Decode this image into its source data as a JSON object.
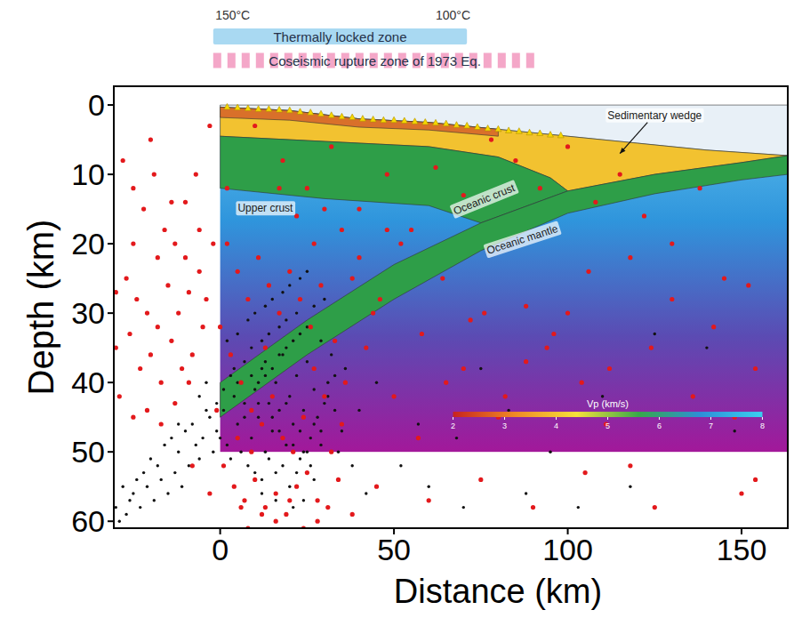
{
  "chart_data": {
    "type": "scatter",
    "xlabel": "Distance (km)",
    "ylabel": "Depth (km)",
    "xlim": [
      -30.6,
      163.3
    ],
    "ylim": [
      61,
      -2.7
    ],
    "xticks": [
      0,
      50,
      100,
      150
    ],
    "yticks": [
      0,
      10,
      20,
      30,
      40,
      50,
      60
    ],
    "series": [
      {
        "color": "#e3191c",
        "marker": "circle",
        "x": [
          -28,
          -25,
          -22,
          -19,
          -16,
          -13,
          -10,
          -27,
          -24,
          -21,
          -18,
          -15,
          -12,
          -9,
          -6,
          -30,
          -26,
          -23,
          -20,
          -17,
          -14,
          -11,
          -8,
          -5,
          -29,
          -25,
          -21,
          -17,
          -13,
          -9,
          -3,
          -7,
          -2,
          -20,
          -25,
          -30,
          -18,
          -14,
          -10,
          -6,
          2,
          5,
          8,
          11,
          14,
          17,
          20,
          23,
          26,
          29,
          3,
          6,
          9,
          12,
          15,
          18,
          21,
          24,
          27,
          30,
          1,
          4,
          7,
          10,
          13,
          16,
          19,
          22,
          25,
          28,
          32,
          35,
          34,
          31,
          28,
          24,
          20,
          16,
          12,
          8,
          10,
          18,
          25,
          32,
          40,
          48,
          55,
          62,
          70,
          78,
          85,
          92,
          100,
          108,
          115,
          122,
          130,
          138,
          145,
          152,
          40,
          46,
          52,
          58,
          64,
          70,
          76,
          82,
          88,
          94,
          100,
          106,
          112,
          118,
          124,
          130,
          136,
          142,
          148,
          154,
          42,
          50,
          57,
          65,
          72,
          80,
          88,
          96,
          104,
          111,
          45,
          60,
          75,
          90,
          105,
          118,
          125,
          150,
          154,
          38,
          35,
          38,
          44,
          30,
          27,
          33,
          22,
          17,
          36,
          48,
          -4,
          0,
          2,
          -1,
          5,
          9,
          13,
          -8,
          -3,
          6
        ],
        "values": [
          8,
          12,
          15,
          10,
          18,
          20,
          14,
          25,
          28,
          30,
          22,
          26,
          30,
          27,
          24,
          35,
          33,
          38,
          36,
          40,
          34,
          38,
          36,
          32,
          42,
          45,
          44,
          46,
          43,
          40,
          3,
          10,
          20,
          5,
          20,
          27,
          32,
          14,
          22,
          18,
          20,
          24,
          28,
          22,
          26,
          30,
          24,
          28,
          32,
          26,
          36,
          40,
          44,
          46,
          42,
          48,
          50,
          45,
          38,
          42,
          52,
          55,
          57,
          54,
          58,
          56,
          59,
          55,
          53,
          57,
          50,
          46,
          54,
          58,
          60,
          61,
          57,
          60,
          59,
          61,
          3,
          8,
          12,
          6,
          15,
          10,
          18,
          9,
          13,
          5,
          8,
          12,
          6,
          14,
          10,
          16,
          20,
          12,
          25,
          26,
          22,
          28,
          20,
          33,
          25,
          38,
          30,
          42,
          29,
          35,
          30,
          24,
          38,
          22,
          35,
          28,
          42,
          32,
          45,
          38,
          35,
          42,
          48,
          40,
          31,
          45,
          37,
          33,
          40,
          46,
          55,
          57,
          54,
          58,
          53,
          52,
          58,
          56,
          54,
          59,
          18,
          25,
          30,
          15,
          20,
          34,
          16,
          12,
          40,
          18,
          28,
          32,
          12,
          44,
          48,
          50,
          35,
          52,
          56,
          58
        ]
      },
      {
        "color": "#111111",
        "marker": "circle",
        "x": [
          -8,
          -5,
          -3,
          -1,
          1,
          2,
          4,
          5,
          7,
          9,
          10,
          11,
          12,
          13,
          14,
          15,
          16,
          17,
          18,
          19,
          20,
          21,
          22,
          23,
          24,
          25,
          26,
          27,
          28,
          30,
          -12,
          -10,
          -9,
          -7,
          -6,
          -4,
          -2,
          0,
          3,
          6,
          8,
          10,
          12,
          14,
          16,
          18,
          20,
          22,
          24,
          26,
          -30,
          -28,
          -26,
          -24,
          -22,
          -20,
          -18,
          -16,
          -14,
          -12,
          -29,
          -27,
          -25,
          -23,
          -21,
          -19,
          -17,
          -15,
          -13,
          -11,
          2,
          5,
          8,
          10,
          13,
          15,
          18,
          20,
          23,
          25,
          4,
          7,
          9,
          12,
          14,
          17,
          19,
          22,
          27,
          30,
          11,
          13,
          15,
          17,
          19,
          21,
          23,
          25,
          29,
          32,
          31,
          33,
          35,
          34,
          29,
          27,
          24,
          21,
          16,
          12,
          45,
          52,
          60,
          68,
          75,
          83,
          95,
          103,
          118,
          140,
          148,
          125,
          110,
          88,
          70,
          57,
          40,
          36,
          38,
          42,
          -6,
          -4,
          -1,
          1,
          3,
          5,
          7,
          9,
          11,
          13,
          15,
          17,
          19,
          21,
          23,
          25,
          27,
          29,
          31,
          33
        ],
        "values": [
          46,
          48,
          45,
          47,
          44,
          49,
          42,
          46,
          43,
          48,
          41,
          45,
          38,
          50,
          43,
          47,
          40,
          44,
          36,
          49,
          42,
          46,
          39,
          51,
          44,
          37,
          48,
          41,
          45,
          43,
          50,
          47,
          52,
          49,
          51,
          44,
          50,
          48,
          51,
          50,
          52,
          53,
          54,
          51,
          53,
          52,
          55,
          53,
          50,
          52,
          58,
          55,
          57,
          54,
          53,
          51,
          52,
          49,
          48,
          46,
          60,
          59,
          56,
          58,
          55,
          57,
          54,
          56,
          53,
          55,
          34,
          33,
          31,
          30,
          29,
          28,
          27,
          26,
          25,
          24,
          38,
          37,
          35,
          34,
          33,
          32,
          31,
          30,
          29,
          28,
          40,
          39,
          38,
          36,
          35,
          34,
          33,
          32,
          34,
          36,
          40,
          44,
          47,
          50,
          49,
          54,
          57,
          58,
          57,
          56,
          40,
          52,
          55,
          48,
          38,
          44,
          50,
          58,
          55,
          35,
          47,
          33,
          42,
          56,
          58,
          46,
          44,
          38,
          52,
          56,
          42,
          40,
          43,
          41,
          39,
          40,
          45,
          39,
          43,
          37,
          45,
          47,
          43,
          49,
          47,
          50,
          46,
          47,
          42,
          39
        ]
      }
    ],
    "stations": {
      "color": "#f5d800",
      "marker": "triangle",
      "x": [
        2,
        5,
        8,
        11,
        14,
        17,
        20,
        23,
        26,
        29,
        32,
        35,
        38,
        41,
        44,
        47,
        50,
        53,
        56,
        59,
        62,
        65,
        68,
        71,
        74,
        77,
        80,
        83,
        86,
        89,
        92,
        95,
        98
      ],
      "values": [
        0.3,
        0.4,
        0.5,
        0.6,
        0.6,
        0.7,
        0.8,
        1.0,
        1.1,
        1.3,
        1.5,
        1.7,
        1.8,
        2.0,
        2.1,
        2.2,
        2.2,
        2.3,
        2.4,
        2.5,
        2.6,
        2.7,
        2.9,
        3.0,
        3.2,
        3.4,
        3.5,
        3.7,
        3.8,
        4.0,
        4.1,
        4.3,
        4.4
      ]
    },
    "model": {
      "extent": {
        "x": [
          0,
          163.3
        ],
        "depth": [
          0,
          50
        ],
        "colors": [
          "#62c3ef",
          "#2f95dc",
          "#5b4bb3",
          "#a3189a"
        ]
      },
      "layers": [
        {
          "color": "#e8f0f7",
          "x": [
            0,
            163.3,
            163.3,
            140,
            120,
            100,
            80,
            60,
            40,
            20,
            0
          ],
          "depth": [
            0,
            0,
            7.3,
            6.5,
            5.5,
            4.5,
            3.5,
            2.5,
            2,
            0.8,
            0.3
          ]
        },
        {
          "color": "#f2c230",
          "x": [
            0,
            20,
            40,
            60,
            80,
            100,
            120,
            140,
            163.3,
            150,
            125,
            100,
            95,
            80,
            60,
            40,
            20,
            0
          ],
          "depth": [
            0.3,
            0.8,
            2,
            2.5,
            3.5,
            4.5,
            5.5,
            6.5,
            7.3,
            8.3,
            10,
            12.4,
            10.5,
            7.5,
            6,
            5.5,
            5,
            4.5
          ]
        },
        {
          "color": "#d9702a",
          "x": [
            0,
            20,
            40,
            60,
            80,
            80,
            60,
            40,
            20,
            0
          ],
          "depth": [
            0.3,
            0.8,
            2,
            2.5,
            3.5,
            4.5,
            3.6,
            3.2,
            2.2,
            1.8
          ]
        },
        {
          "color": "#2e9e48",
          "x": [
            0,
            20,
            40,
            60,
            80,
            95,
            100,
            75,
            60,
            30,
            0
          ],
          "depth": [
            4.5,
            5,
            5.5,
            6,
            7.5,
            10.5,
            12.4,
            17,
            14.5,
            13.5,
            12
          ]
        },
        {
          "color": "#2e9e48",
          "x": [
            0,
            25,
            50,
            75,
            100,
            125,
            150,
            163.3,
            163.3,
            150,
            125,
            100,
            75,
            50,
            25,
            0
          ],
          "depth": [
            40,
            31,
            23,
            17,
            12.4,
            10,
            8.3,
            7.3,
            10,
            10.8,
            12.8,
            15.6,
            21,
            28,
            36,
            45
          ]
        }
      ],
      "labels": [
        {
          "text": "Sedimentary wedge",
          "x": 125,
          "depth": 1.6,
          "arrow_to": [
            115,
            7
          ]
        },
        {
          "text": "Upper crust",
          "x": 13,
          "depth": 15
        },
        {
          "text": "Oceanic crust",
          "x": 76,
          "depth": 13.7
        },
        {
          "text": "Oceanic mantle",
          "x": 87,
          "depth": 19.5
        }
      ]
    },
    "colorbar": {
      "label": "Vp (km/s)",
      "range": [
        2,
        8
      ],
      "ticks": [
        2,
        3,
        4,
        5,
        6,
        7,
        8
      ],
      "x": [
        67,
        156
      ],
      "depth": 44.6,
      "colors": [
        "#c8231e",
        "#f08a24",
        "#f6e13a",
        "#37a84a",
        "#2d8fd8",
        "#39d0f0"
      ]
    },
    "top_bars": [
      {
        "label": "Thermally locked zone",
        "x": [
          -2,
          71
        ],
        "color": "#a9d9f2",
        "line_style": "solid"
      },
      {
        "label": "Coseismic rupture zone of 1973 Eq.",
        "x": [
          -2,
          91
        ],
        "color": "#f4a7c8",
        "line_style": "dashed"
      }
    ],
    "temperatures": [
      {
        "label": "150°C",
        "x": 3.6
      },
      {
        "label": "100°C",
        "x": 67
      }
    ]
  }
}
